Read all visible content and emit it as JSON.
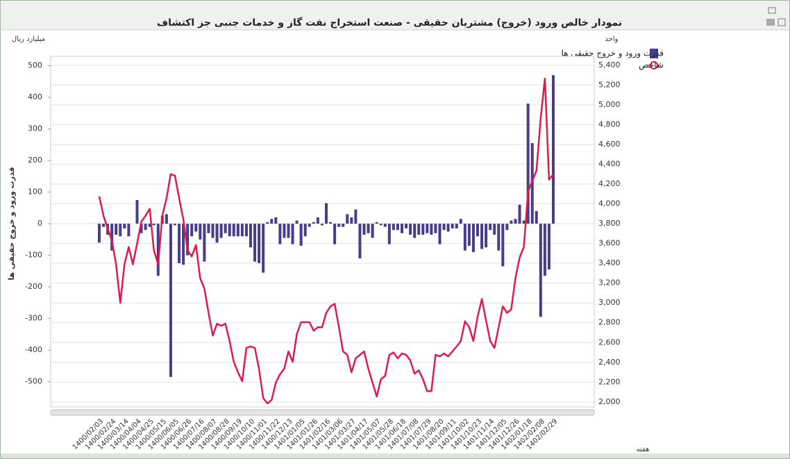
{
  "title": "نمودار خالص ورود (خروج) مشتریان حقیقی - صنعت استخراج نفت گاز و خدمات جنبی جز اکتشاف",
  "chart_data": {
    "type": "combo",
    "y_axis_label": "قدرت ورود و خروج حقیقی ها",
    "y_unit": "میلیارد ریال",
    "y2_unit": "واحد",
    "x_axis_label": "هفته",
    "categories": [
      "1400/02/03",
      null,
      null,
      "1400/02/24",
      null,
      null,
      "1400/03/14",
      null,
      null,
      "1400/04/04",
      null,
      null,
      "1400/04/25",
      null,
      null,
      "1400/05/15",
      null,
      null,
      "1400/06/05",
      null,
      null,
      "1400/06/26",
      null,
      null,
      "1400/07/16",
      null,
      null,
      "1400/08/07",
      null,
      null,
      "1400/08/28",
      null,
      null,
      "1400/09/19",
      null,
      null,
      "1400/10/10",
      null,
      null,
      "1400/11/01",
      null,
      null,
      "1400/11/22",
      null,
      null,
      "1400/12/13",
      null,
      null,
      "1401/01/05",
      null,
      null,
      "1401/01/26",
      null,
      null,
      "1401/02/16",
      null,
      null,
      "1401/03/06",
      null,
      null,
      "1401/03/27",
      null,
      null,
      "1401/04/17",
      null,
      null,
      "1401/05/07",
      null,
      null,
      "1401/05/28",
      null,
      null,
      "1401/06/18",
      null,
      null,
      "1401/07/08",
      null,
      null,
      "1401/07/29",
      null,
      null,
      "1401/08/20",
      null,
      null,
      "1401/09/11",
      null,
      null,
      "1401/10/02",
      null,
      null,
      "1401/10/23",
      null,
      null,
      "1401/11/14",
      null,
      null,
      "1401/12/05",
      null,
      null,
      "1401/12/26",
      null,
      null,
      "1402/01/18",
      null,
      null,
      "1402/02/08",
      null,
      null,
      "1402/02/29"
    ],
    "series": [
      {
        "name": "قدرت ورود و خروج حقیقی ها",
        "type": "bar",
        "color": "#483d8b",
        "values": [
          -60,
          -10,
          -35,
          -85,
          -35,
          -40,
          -15,
          -40,
          0,
          75,
          -30,
          -20,
          -10,
          -5,
          -165,
          25,
          30,
          -485,
          -5,
          -125,
          -130,
          -100,
          -40,
          -25,
          -50,
          -120,
          -30,
          -45,
          -60,
          -45,
          -30,
          -40,
          -40,
          -40,
          -40,
          -40,
          -75,
          -120,
          -125,
          -155,
          5,
          15,
          20,
          -65,
          -45,
          -45,
          -65,
          10,
          -70,
          -40,
          -10,
          5,
          20,
          -5,
          65,
          5,
          -65,
          -10,
          -10,
          30,
          20,
          45,
          -110,
          -35,
          -30,
          -45,
          5,
          -5,
          -10,
          -65,
          -20,
          -20,
          -30,
          -15,
          -35,
          -45,
          -35,
          -35,
          -30,
          -35,
          -30,
          -65,
          -20,
          -25,
          -15,
          -15,
          15,
          -85,
          -70,
          -90,
          -40,
          -80,
          -75,
          -20,
          -35,
          -85,
          -135,
          -20,
          10,
          15,
          60,
          10,
          380,
          255,
          40,
          -295,
          -165,
          -145,
          470
        ]
      },
      {
        "name": "شاخص",
        "type": "line",
        "axis": "y2",
        "color": "#e0194b",
        "values": [
          4075,
          3880,
          3750,
          3630,
          3390,
          3000,
          3390,
          3565,
          3390,
          3600,
          3820,
          3880,
          3950,
          3530,
          3390,
          3880,
          4055,
          4300,
          4285,
          4055,
          3845,
          3530,
          3470,
          3585,
          3250,
          3145,
          2900,
          2670,
          2790,
          2770,
          2790,
          2615,
          2405,
          2300,
          2210,
          2545,
          2560,
          2545,
          2335,
          2040,
          1985,
          2020,
          2195,
          2280,
          2335,
          2510,
          2405,
          2685,
          2805,
          2805,
          2805,
          2720,
          2755,
          2755,
          2900,
          2965,
          2990,
          2755,
          2510,
          2475,
          2300,
          2440,
          2475,
          2510,
          2335,
          2195,
          2055,
          2230,
          2265,
          2475,
          2500,
          2440,
          2490,
          2475,
          2420,
          2285,
          2320,
          2230,
          2110,
          2110,
          2475,
          2460,
          2490,
          2460,
          2510,
          2560,
          2615,
          2815,
          2755,
          2615,
          2860,
          3040,
          2825,
          2615,
          2545,
          2755,
          2965,
          2900,
          2935,
          3250,
          3460,
          3565,
          4125,
          4230,
          4335,
          4860,
          5265,
          4245,
          4300
        ]
      }
    ],
    "ylim": [
      -580,
      530
    ],
    "yticks": [
      -500,
      -400,
      -300,
      -200,
      -100,
      0,
      100,
      200,
      300,
      400,
      500
    ],
    "y2lim": [
      1950,
      5490
    ],
    "y2ticks": [
      {
        "value": 2000,
        "label": "2,000"
      },
      {
        "value": 2200,
        "label": "2,200"
      },
      {
        "value": 2400,
        "label": "2,400"
      },
      {
        "value": 2600,
        "label": "2,600"
      },
      {
        "value": 2800,
        "label": "2,800"
      },
      {
        "value": 3000,
        "label": "3,000"
      },
      {
        "value": 3200,
        "label": "3,200"
      },
      {
        "value": 3400,
        "label": "3,400"
      },
      {
        "value": 3600,
        "label": "3,600"
      },
      {
        "value": 3800,
        "label": "3,800"
      },
      {
        "value": 4000,
        "label": "4,000"
      },
      {
        "value": 4200,
        "label": "4,200"
      },
      {
        "value": 4400,
        "label": "4,400"
      },
      {
        "value": 4600,
        "label": "4,600"
      },
      {
        "value": 4800,
        "label": "4,800"
      },
      {
        "value": 5000,
        "label": "5,000"
      },
      {
        "value": 5200,
        "label": "5,200"
      },
      {
        "value": 5400,
        "label": "5,400"
      }
    ],
    "grid": true,
    "legend": "top-right"
  }
}
